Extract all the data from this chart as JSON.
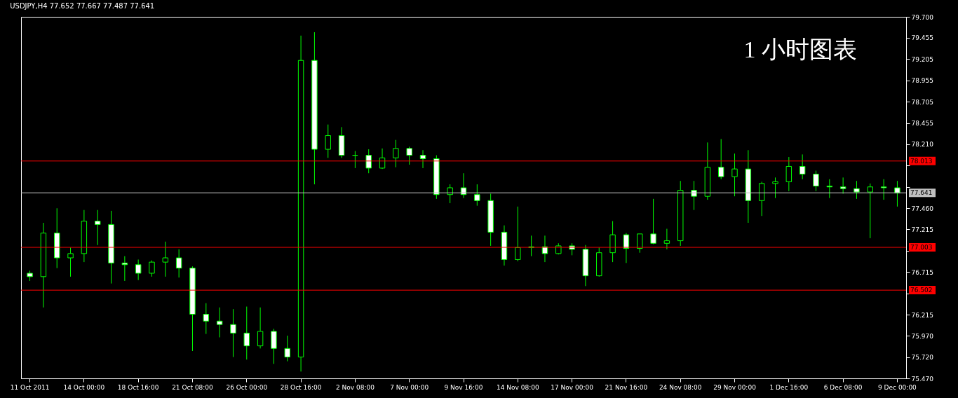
{
  "chart_data": {
    "type": "candlestick",
    "title": "USDJPY,H4 77.652 77.667 77.487 77.641",
    "annotations": [
      "1 小时图表"
    ],
    "categories": [
      "11 Oct 2011",
      null,
      null,
      null,
      "14 Oct 00:00",
      null,
      null,
      null,
      "18 Oct 16:00",
      null,
      null,
      null,
      "21 Oct 08:00",
      null,
      null,
      null,
      "26 Oct 00:00",
      null,
      null,
      null,
      "28 Oct 16:00",
      null,
      null,
      null,
      "2 Nov 08:00",
      null,
      null,
      null,
      "7 Nov 00:00",
      null,
      null,
      null,
      "9 Nov 16:00",
      null,
      null,
      null,
      "14 Nov 08:00",
      null,
      null,
      null,
      "17 Nov 00:00",
      null,
      null,
      null,
      "21 Nov 16:00",
      null,
      null,
      null,
      "24 Nov 08:00",
      null,
      null,
      null,
      "29 Nov 00:00",
      null,
      null,
      null,
      "1 Dec 16:00",
      null,
      null,
      null,
      "6 Dec 08:00",
      null,
      null,
      null,
      "9 Dec 00:00"
    ],
    "ohlc": [
      [
        76.7,
        76.73,
        76.61,
        76.66
      ],
      [
        76.66,
        77.29,
        76.3,
        77.17
      ],
      [
        77.17,
        77.46,
        76.76,
        76.88
      ],
      [
        76.88,
        77.0,
        76.66,
        76.93
      ],
      [
        76.93,
        77.44,
        76.83,
        77.31
      ],
      [
        77.31,
        77.44,
        77.03,
        77.27
      ],
      [
        77.27,
        77.43,
        76.58,
        76.82
      ],
      [
        76.82,
        76.9,
        76.61,
        76.8
      ],
      [
        76.8,
        76.86,
        76.62,
        76.7
      ],
      [
        76.7,
        76.85,
        76.66,
        76.83
      ],
      [
        76.83,
        77.07,
        76.66,
        76.88
      ],
      [
        76.88,
        76.98,
        76.65,
        76.76
      ],
      [
        76.76,
        76.78,
        75.79,
        76.22
      ],
      [
        76.22,
        76.35,
        75.99,
        76.14
      ],
      [
        76.14,
        76.3,
        75.95,
        76.1
      ],
      [
        76.1,
        76.28,
        75.72,
        76.0
      ],
      [
        76.0,
        76.31,
        75.69,
        75.85
      ],
      [
        75.85,
        76.3,
        75.82,
        76.02
      ],
      [
        76.02,
        76.05,
        75.64,
        75.82
      ],
      [
        75.82,
        75.97,
        75.67,
        75.72
      ],
      [
        75.72,
        79.48,
        75.55,
        79.19
      ],
      [
        79.19,
        79.52,
        77.74,
        78.15
      ],
      [
        78.15,
        78.44,
        78.05,
        78.31
      ],
      [
        78.31,
        78.41,
        78.05,
        78.08
      ],
      [
        78.08,
        78.13,
        77.93,
        78.08
      ],
      [
        78.08,
        78.15,
        77.87,
        77.93
      ],
      [
        77.93,
        78.16,
        77.92,
        78.05
      ],
      [
        78.05,
        78.26,
        77.94,
        78.16
      ],
      [
        78.16,
        78.18,
        77.97,
        78.08
      ],
      [
        78.08,
        78.14,
        77.93,
        78.04
      ],
      [
        78.04,
        78.08,
        77.57,
        77.62
      ],
      [
        77.62,
        77.74,
        77.52,
        77.7
      ],
      [
        77.7,
        77.87,
        77.58,
        77.62
      ],
      [
        77.62,
        77.74,
        77.49,
        77.55
      ],
      [
        77.55,
        77.63,
        77.02,
        77.18
      ],
      [
        77.18,
        77.26,
        76.79,
        76.86
      ],
      [
        76.86,
        77.48,
        76.84,
        77.0
      ],
      [
        77.0,
        77.14,
        76.9,
        77.01
      ],
      [
        77.01,
        77.14,
        76.83,
        76.93
      ],
      [
        76.93,
        77.05,
        76.92,
        77.02
      ],
      [
        77.02,
        77.05,
        76.91,
        76.98
      ],
      [
        76.98,
        77.03,
        76.55,
        76.67
      ],
      [
        76.67,
        77.0,
        76.66,
        76.94
      ],
      [
        76.94,
        77.31,
        76.83,
        77.15
      ],
      [
        77.15,
        77.17,
        76.82,
        76.99
      ],
      [
        76.99,
        77.16,
        76.94,
        77.16
      ],
      [
        77.16,
        77.57,
        77.04,
        77.05
      ],
      [
        77.05,
        77.22,
        76.98,
        77.08
      ],
      [
        77.08,
        77.78,
        77.02,
        77.67
      ],
      [
        77.67,
        77.78,
        77.44,
        77.6
      ],
      [
        77.6,
        78.23,
        77.56,
        77.94
      ],
      [
        77.94,
        78.27,
        77.8,
        77.83
      ],
      [
        77.83,
        78.1,
        77.6,
        77.92
      ],
      [
        77.92,
        78.14,
        77.29,
        77.55
      ],
      [
        77.55,
        77.77,
        77.37,
        77.75
      ],
      [
        77.75,
        77.82,
        77.58,
        77.77
      ],
      [
        77.77,
        78.06,
        77.66,
        77.95
      ],
      [
        77.95,
        78.09,
        77.8,
        77.86
      ],
      [
        77.86,
        77.9,
        77.66,
        77.72
      ],
      [
        77.72,
        77.8,
        77.58,
        77.71
      ],
      [
        77.71,
        77.82,
        77.63,
        77.69
      ],
      [
        77.69,
        77.78,
        77.57,
        77.65
      ],
      [
        77.65,
        77.75,
        77.11,
        77.71
      ],
      [
        77.71,
        77.8,
        77.56,
        77.7
      ],
      [
        77.7,
        77.78,
        77.48,
        77.64
      ]
    ],
    "color": "#00ff00",
    "ylim": [
      75.47,
      79.7
    ],
    "yticks": [
      {
        "value": 75.47,
        "label": "75.470"
      },
      {
        "value": 75.72,
        "label": "75.720"
      },
      {
        "value": 75.97,
        "label": "75.970"
      },
      76.215,
      {
        "value": 76.465,
        "label": null
      },
      76.715,
      {
        "value": 76.965,
        "label": null
      },
      77.215,
      {
        "value": 77.46,
        "label": "77.460"
      },
      {
        "value": 77.71,
        "label": null
      },
      {
        "value": 77.96,
        "label": null
      },
      {
        "value": 78.21,
        "label": "78.210"
      },
      78.455,
      78.705,
      78.955,
      79.205,
      79.455,
      {
        "value": 79.7,
        "label": "79.700"
      }
    ],
    "ref_lines": [
      {
        "axis": "y",
        "value": 78.013,
        "label": "78.013",
        "color": "#ff0000"
      },
      {
        "axis": "y",
        "value": 77.641,
        "label": "77.641",
        "color": "#c0c0c0"
      },
      {
        "axis": "y",
        "value": 77.003,
        "label": "77.003",
        "color": "#ff0000"
      },
      {
        "axis": "y",
        "value": 76.502,
        "label": "76.502",
        "color": "#ff0000"
      }
    ],
    "grid": false
  }
}
